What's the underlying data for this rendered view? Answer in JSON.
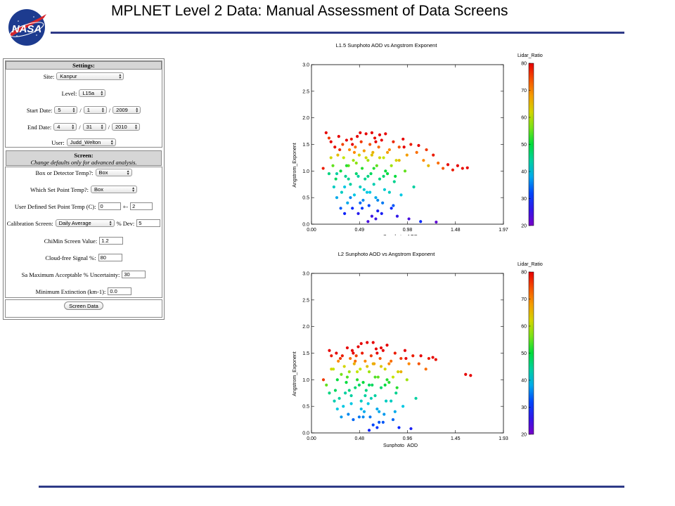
{
  "slide": {
    "title": "MPLNET Level 2 Data:  Manual Assessment of Data Screens",
    "logo_text": "NASA"
  },
  "settings": {
    "header": "Settings:",
    "site_label": "Site:",
    "site_value": "Kanpur",
    "level_label": "Level:",
    "level_value": "L15a",
    "start_label": "Start Date:",
    "start_month": "5",
    "start_day": "1",
    "start_year": "2009",
    "end_label": "End Date:",
    "end_month": "4",
    "end_day": "31",
    "end_year": "2010",
    "user_label": "User:",
    "user_value": "Judd_Welton",
    "slash": "/"
  },
  "screen": {
    "header": "Screen:",
    "subheader": "Change defaults only for advanced analysis.",
    "box_label": "Box or Detector Temp?:",
    "box_value": "Box",
    "setpoint_label": "Which Set Point Temp?:",
    "setpoint_value": "Box",
    "user_setpoint_label": "User Defined Set Point Temp (C):",
    "user_setpoint_value": "0",
    "plusminus": "+-",
    "user_setpoint_tol": "2",
    "calib_label": "Calibration Screen:",
    "calib_value": "Daily Average",
    "dev_label": "% Dev:",
    "dev_value": "5",
    "chimin_label": "ChiMin Screen Value:",
    "chimin_value": "1.2",
    "cloudfree_label": "Cloud-free Signal %:",
    "cloudfree_value": "80",
    "sa_label": "Sa Maximum Acceptable % Uncertainty:",
    "sa_value": "30",
    "minext_label": "Minimum Extinction (km-1):",
    "minext_value": "0.0",
    "button_label": "Screen Data"
  },
  "colors": {
    "accent": "#2e3a87"
  },
  "chart_data": [
    {
      "type": "scatter",
      "title": "L1.5 Sunphoto AOD vs Angstrom Exponent",
      "xlabel": "Sunphoto_AOD",
      "ylabel": "Angstrom_Exponent",
      "xlim": [
        0.0,
        1.97
      ],
      "ylim": [
        0.0,
        3.0
      ],
      "xticks": [
        "0.00",
        "0.49",
        "0.98",
        "1.48",
        "1.97"
      ],
      "yticks": [
        "0.0",
        "0.5",
        "1.0",
        "1.5",
        "2.0",
        "2.5",
        "3.0"
      ],
      "colorbar_label": "Lidar_Ratio",
      "colorbar_ticks": [
        "20",
        "30",
        "40",
        "50",
        "60",
        "70",
        "80"
      ],
      "colorbar_range": [
        20,
        80
      ],
      "points": [
        [
          0.12,
          1.05,
          78
        ],
        [
          0.15,
          1.72,
          80
        ],
        [
          0.18,
          1.62,
          76
        ],
        [
          0.2,
          1.55,
          80
        ],
        [
          0.22,
          1.1,
          55
        ],
        [
          0.24,
          1.45,
          79
        ],
        [
          0.25,
          0.85,
          48
        ],
        [
          0.27,
          1.3,
          65
        ],
        [
          0.28,
          1.65,
          80
        ],
        [
          0.3,
          1.0,
          50
        ],
        [
          0.31,
          0.6,
          42
        ],
        [
          0.32,
          1.5,
          75
        ],
        [
          0.33,
          1.25,
          60
        ],
        [
          0.35,
          0.9,
          45
        ],
        [
          0.36,
          1.58,
          80
        ],
        [
          0.37,
          0.4,
          38
        ],
        [
          0.38,
          1.1,
          55
        ],
        [
          0.39,
          1.4,
          70
        ],
        [
          0.4,
          0.75,
          44
        ],
        [
          0.41,
          1.6,
          78
        ],
        [
          0.42,
          0.3,
          30
        ],
        [
          0.43,
          1.2,
          58
        ],
        [
          0.44,
          0.55,
          40
        ],
        [
          0.45,
          1.45,
          72
        ],
        [
          0.46,
          0.95,
          47
        ],
        [
          0.47,
          1.65,
          80
        ],
        [
          0.48,
          0.2,
          27
        ],
        [
          0.49,
          1.3,
          62
        ],
        [
          0.5,
          0.7,
          42
        ],
        [
          0.51,
          1.55,
          76
        ],
        [
          0.52,
          1.05,
          52
        ],
        [
          0.53,
          0.45,
          36
        ],
        [
          0.54,
          1.38,
          68
        ],
        [
          0.55,
          0.85,
          45
        ],
        [
          0.56,
          1.7,
          80
        ],
        [
          0.57,
          0.6,
          40
        ],
        [
          0.58,
          1.2,
          58
        ],
        [
          0.59,
          0.35,
          32
        ],
        [
          0.6,
          1.5,
          74
        ],
        [
          0.61,
          0.95,
          48
        ],
        [
          0.62,
          0.15,
          25
        ],
        [
          0.63,
          1.35,
          66
        ],
        [
          0.64,
          0.75,
          43
        ],
        [
          0.65,
          1.62,
          79
        ],
        [
          0.66,
          0.5,
          38
        ],
        [
          0.67,
          1.1,
          55
        ],
        [
          0.68,
          0.25,
          28
        ],
        [
          0.69,
          1.45,
          72
        ],
        [
          0.7,
          0.85,
          46
        ],
        [
          0.72,
          1.58,
          80
        ],
        [
          0.73,
          0.4,
          35
        ],
        [
          0.74,
          1.25,
          60
        ],
        [
          0.75,
          0.65,
          41
        ],
        [
          0.76,
          1.7,
          80
        ],
        [
          0.78,
          0.95,
          50
        ],
        [
          0.8,
          1.4,
          70
        ],
        [
          0.82,
          0.3,
          30
        ],
        [
          0.84,
          1.55,
          77
        ],
        [
          0.85,
          0.8,
          45
        ],
        [
          0.87,
          1.2,
          62
        ],
        [
          0.88,
          0.15,
          26
        ],
        [
          0.9,
          1.45,
          74
        ],
        [
          0.92,
          0.55,
          40
        ],
        [
          0.94,
          1.6,
          80
        ],
        [
          0.96,
          1.0,
          55
        ],
        [
          0.98,
          1.3,
          68
        ],
        [
          1.0,
          0.1,
          24
        ],
        [
          1.02,
          1.5,
          78
        ],
        [
          1.05,
          0.7,
          44
        ],
        [
          1.08,
          1.35,
          72
        ],
        [
          1.1,
          1.48,
          80
        ],
        [
          1.12,
          0.05,
          30
        ],
        [
          1.15,
          1.2,
          70
        ],
        [
          1.18,
          1.4,
          76
        ],
        [
          1.2,
          1.1,
          65
        ],
        [
          1.25,
          1.3,
          78
        ],
        [
          1.28,
          0.04,
          22
        ],
        [
          1.3,
          1.15,
          72
        ],
        [
          1.35,
          1.05,
          74
        ],
        [
          1.4,
          1.12,
          80
        ],
        [
          1.45,
          1.02,
          78
        ],
        [
          1.5,
          1.1,
          80
        ],
        [
          1.55,
          1.05,
          79
        ],
        [
          1.6,
          1.06,
          80
        ],
        [
          0.26,
          0.95,
          44
        ],
        [
          0.34,
          0.7,
          40
        ],
        [
          0.29,
          1.4,
          77
        ],
        [
          0.36,
          1.1,
          52
        ],
        [
          0.4,
          0.5,
          36
        ],
        [
          0.44,
          1.35,
          70
        ],
        [
          0.48,
          0.9,
          44
        ],
        [
          0.52,
          0.3,
          31
        ],
        [
          0.56,
          1.25,
          62
        ],
        [
          0.6,
          0.6,
          40
        ],
        [
          0.64,
          1.05,
          52
        ],
        [
          0.68,
          0.45,
          36
        ],
        [
          0.72,
          0.2,
          28
        ],
        [
          0.76,
          1.0,
          50
        ],
        [
          0.8,
          0.6,
          42
        ],
        [
          0.84,
          0.35,
          33
        ],
        [
          0.62,
          1.72,
          80
        ],
        [
          0.7,
          1.68,
          80
        ],
        [
          0.58,
          0.05,
          24
        ],
        [
          0.66,
          0.1,
          25
        ],
        [
          0.5,
          1.72,
          80
        ],
        [
          0.2,
          1.25,
          62
        ],
        [
          0.18,
          0.95,
          46
        ],
        [
          0.23,
          0.7,
          42
        ],
        [
          0.26,
          0.5,
          38
        ],
        [
          0.3,
          0.3,
          33
        ],
        [
          0.34,
          0.2,
          29
        ],
        [
          0.38,
          0.85,
          45
        ],
        [
          0.42,
          1.5,
          80
        ],
        [
          0.46,
          1.15,
          57
        ],
        [
          0.5,
          0.4,
          34
        ],
        [
          0.54,
          0.65,
          41
        ],
        [
          0.58,
          0.9,
          46
        ],
        [
          0.62,
          1.3,
          64
        ],
        [
          0.66,
          1.55,
          80
        ],
        [
          0.7,
          1.25,
          62
        ],
        [
          0.74,
          0.9,
          47
        ],
        [
          0.78,
          1.35,
          68
        ],
        [
          0.82,
          1.1,
          58
        ],
        [
          0.86,
          0.9,
          50
        ],
        [
          0.9,
          1.2,
          65
        ],
        [
          0.95,
          1.45,
          80
        ]
      ]
    },
    {
      "type": "scatter",
      "title": "L2 Sunphoto AOD vs Angstrom Exponent",
      "xlabel": "Sunphoto_AOD",
      "ylabel": "Angstrom_Exponent",
      "xlim": [
        0.0,
        1.93
      ],
      "ylim": [
        0.0,
        3.0
      ],
      "xticks": [
        "0.00",
        "0.48",
        "0.96",
        "1.45",
        "1.93"
      ],
      "yticks": [
        "0.0",
        "0.5",
        "1.0",
        "1.5",
        "2.0",
        "2.5",
        "3.0"
      ],
      "colorbar_label": "Lidar_Ratio",
      "colorbar_ticks": [
        "20",
        "30",
        "40",
        "50",
        "60",
        "70",
        "80"
      ],
      "colorbar_range": [
        20,
        80
      ],
      "points": [
        [
          0.12,
          1.0,
          76
        ],
        [
          0.15,
          0.9,
          55
        ],
        [
          0.18,
          1.55,
          80
        ],
        [
          0.2,
          1.45,
          78
        ],
        [
          0.22,
          1.2,
          60
        ],
        [
          0.24,
          0.8,
          48
        ],
        [
          0.25,
          1.5,
          80
        ],
        [
          0.27,
          1.35,
          70
        ],
        [
          0.28,
          0.65,
          44
        ],
        [
          0.3,
          1.1,
          56
        ],
        [
          0.31,
          1.45,
          78
        ],
        [
          0.32,
          0.5,
          40
        ],
        [
          0.33,
          1.25,
          62
        ],
        [
          0.35,
          0.95,
          50
        ],
        [
          0.36,
          1.6,
          80
        ],
        [
          0.37,
          0.35,
          36
        ],
        [
          0.38,
          1.15,
          58
        ],
        [
          0.39,
          1.4,
          72
        ],
        [
          0.4,
          0.7,
          44
        ],
        [
          0.41,
          1.55,
          80
        ],
        [
          0.42,
          0.25,
          34
        ],
        [
          0.43,
          1.3,
          66
        ],
        [
          0.44,
          0.85,
          47
        ],
        [
          0.45,
          1.45,
          75
        ],
        [
          0.46,
          1.0,
          52
        ],
        [
          0.47,
          1.62,
          80
        ],
        [
          0.48,
          0.3,
          35
        ],
        [
          0.49,
          1.2,
          60
        ],
        [
          0.5,
          0.6,
          42
        ],
        [
          0.51,
          1.5,
          78
        ],
        [
          0.52,
          0.95,
          50
        ],
        [
          0.53,
          0.4,
          38
        ],
        [
          0.54,
          1.35,
          70
        ],
        [
          0.55,
          0.8,
          46
        ],
        [
          0.56,
          1.7,
          80
        ],
        [
          0.57,
          0.55,
          40
        ],
        [
          0.58,
          1.15,
          58
        ],
        [
          0.59,
          0.3,
          35
        ],
        [
          0.6,
          1.45,
          76
        ],
        [
          0.61,
          0.9,
          48
        ],
        [
          0.62,
          0.15,
          32
        ],
        [
          0.63,
          1.3,
          68
        ],
        [
          0.64,
          0.7,
          44
        ],
        [
          0.65,
          1.58,
          80
        ],
        [
          0.66,
          0.45,
          38
        ],
        [
          0.67,
          1.05,
          55
        ],
        [
          0.68,
          0.2,
          33
        ],
        [
          0.69,
          1.4,
          74
        ],
        [
          0.7,
          0.85,
          47
        ],
        [
          0.72,
          1.55,
          80
        ],
        [
          0.73,
          0.35,
          37
        ],
        [
          0.74,
          1.2,
          62
        ],
        [
          0.75,
          0.6,
          42
        ],
        [
          0.76,
          1.65,
          80
        ],
        [
          0.78,
          0.95,
          52
        ],
        [
          0.8,
          1.35,
          72
        ],
        [
          0.82,
          0.25,
          34
        ],
        [
          0.84,
          1.5,
          78
        ],
        [
          0.85,
          0.75,
          45
        ],
        [
          0.87,
          1.15,
          62
        ],
        [
          0.88,
          0.1,
          30
        ],
        [
          0.9,
          1.4,
          76
        ],
        [
          0.92,
          0.5,
          40
        ],
        [
          0.94,
          1.55,
          80
        ],
        [
          0.96,
          1.0,
          58
        ],
        [
          0.98,
          1.3,
          70
        ],
        [
          1.0,
          0.08,
          28
        ],
        [
          1.02,
          1.45,
          78
        ],
        [
          1.05,
          0.65,
          44
        ],
        [
          1.08,
          1.3,
          74
        ],
        [
          1.1,
          1.45,
          80
        ],
        [
          1.15,
          1.2,
          72
        ],
        [
          1.18,
          1.4,
          78
        ],
        [
          1.22,
          1.42,
          80
        ],
        [
          1.25,
          1.38,
          79
        ],
        [
          1.55,
          1.1,
          80
        ],
        [
          1.6,
          1.08,
          80
        ],
        [
          0.26,
          1.0,
          50
        ],
        [
          0.34,
          0.75,
          44
        ],
        [
          0.29,
          1.4,
          76
        ],
        [
          0.36,
          1.05,
          54
        ],
        [
          0.4,
          0.55,
          40
        ],
        [
          0.44,
          1.35,
          72
        ],
        [
          0.48,
          0.9,
          48
        ],
        [
          0.52,
          0.3,
          36
        ],
        [
          0.56,
          1.25,
          64
        ],
        [
          0.6,
          0.65,
          43
        ],
        [
          0.64,
          1.05,
          54
        ],
        [
          0.68,
          0.4,
          38
        ],
        [
          0.72,
          0.2,
          33
        ],
        [
          0.76,
          1.0,
          52
        ],
        [
          0.8,
          0.6,
          42
        ],
        [
          0.84,
          0.4,
          38
        ],
        [
          0.62,
          1.7,
          80
        ],
        [
          0.7,
          1.6,
          80
        ],
        [
          0.58,
          0.05,
          29
        ],
        [
          0.66,
          0.1,
          31
        ],
        [
          0.5,
          1.68,
          80
        ],
        [
          0.2,
          1.2,
          62
        ],
        [
          0.18,
          0.75,
          46
        ],
        [
          0.23,
          0.6,
          43
        ],
        [
          0.26,
          0.45,
          40
        ],
        [
          0.3,
          0.3,
          37
        ],
        [
          0.38,
          0.8,
          46
        ],
        [
          0.42,
          1.5,
          80
        ],
        [
          0.46,
          1.15,
          60
        ],
        [
          0.5,
          0.45,
          39
        ],
        [
          0.54,
          0.7,
          44
        ],
        [
          0.58,
          0.9,
          48
        ],
        [
          0.62,
          1.3,
          66
        ],
        [
          0.66,
          1.5,
          80
        ],
        [
          0.7,
          1.25,
          64
        ],
        [
          0.74,
          0.9,
          50
        ],
        [
          0.78,
          1.3,
          70
        ],
        [
          0.82,
          1.05,
          60
        ],
        [
          0.86,
          0.85,
          52
        ],
        [
          0.9,
          1.15,
          66
        ],
        [
          0.95,
          1.4,
          80
        ]
      ]
    }
  ]
}
